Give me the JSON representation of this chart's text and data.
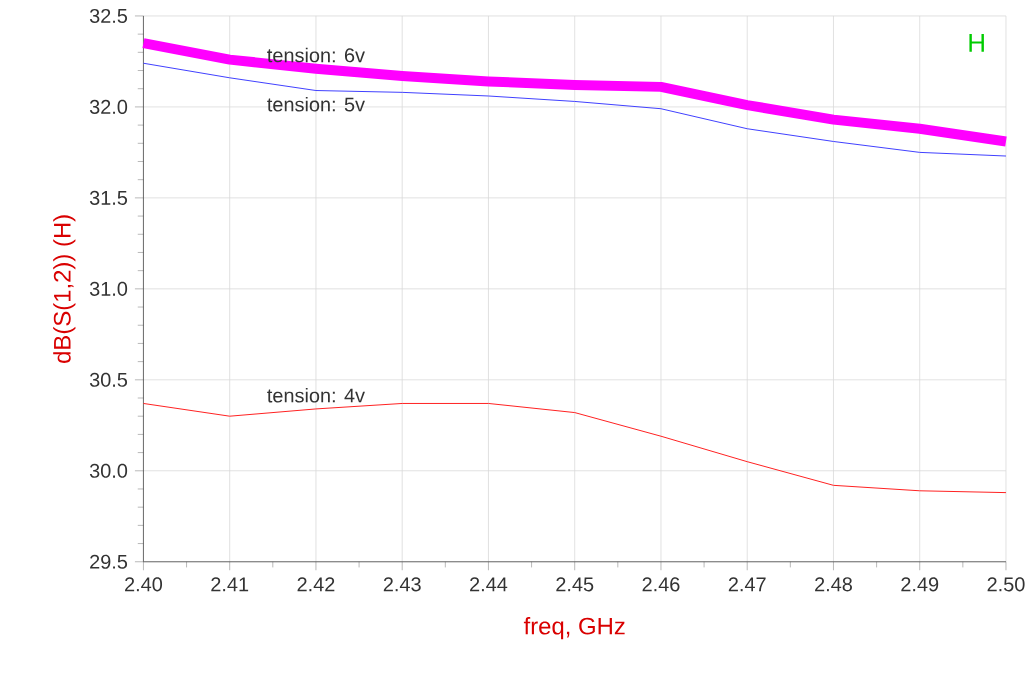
{
  "chart_data": {
    "type": "line",
    "xlabel": "freq, GHz",
    "ylabel": "dB(S(1,2)) (H)",
    "annotations": [
      "H"
    ],
    "grid": true,
    "legend": false,
    "marker": "none",
    "line_style": "solid",
    "x": [
      2.4,
      2.41,
      2.42,
      2.43,
      2.44,
      2.45,
      2.46,
      2.47,
      2.48,
      2.49,
      2.5
    ],
    "xlim": [
      2.4,
      2.5
    ],
    "ylim": [
      29.5,
      32.5
    ],
    "xticks": [
      {
        "value": 2.4,
        "label": "2.40"
      },
      {
        "value": 2.41,
        "label": "2.41"
      },
      {
        "value": 2.42,
        "label": "2.42"
      },
      {
        "value": 2.43,
        "label": "2.43"
      },
      {
        "value": 2.44,
        "label": "2.44"
      },
      {
        "value": 2.45,
        "label": "2.45"
      },
      {
        "value": 2.46,
        "label": "2.46"
      },
      {
        "value": 2.47,
        "label": "2.47"
      },
      {
        "value": 2.48,
        "label": "2.48"
      },
      {
        "value": 2.49,
        "label": "2.49"
      },
      {
        "value": 2.5,
        "label": "2.50"
      }
    ],
    "yticks": [
      29.5,
      {
        "value": 30.0,
        "label": "30.0"
      },
      30.5,
      {
        "value": 31.0,
        "label": "31.0"
      },
      31.5,
      {
        "value": 32.0,
        "label": "32.0"
      },
      32.5
    ],
    "series": [
      {
        "name": "tension: 6v",
        "color": "#ff00ff",
        "values": [
          32.35,
          32.26,
          32.21,
          32.17,
          32.14,
          32.12,
          32.11,
          32.01,
          31.93,
          31.88,
          31.81
        ]
      },
      {
        "name": "tension: 5v",
        "color": "#4040ff",
        "values": [
          32.24,
          32.16,
          32.09,
          32.08,
          32.06,
          32.03,
          31.99,
          31.88,
          31.81,
          31.75,
          31.73
        ]
      },
      {
        "name": "tension: 4v",
        "color": "#ff2020",
        "values": [
          30.37,
          30.3,
          30.34,
          30.37,
          30.37,
          30.32,
          30.19,
          30.05,
          29.92,
          29.89,
          29.88
        ]
      }
    ]
  }
}
